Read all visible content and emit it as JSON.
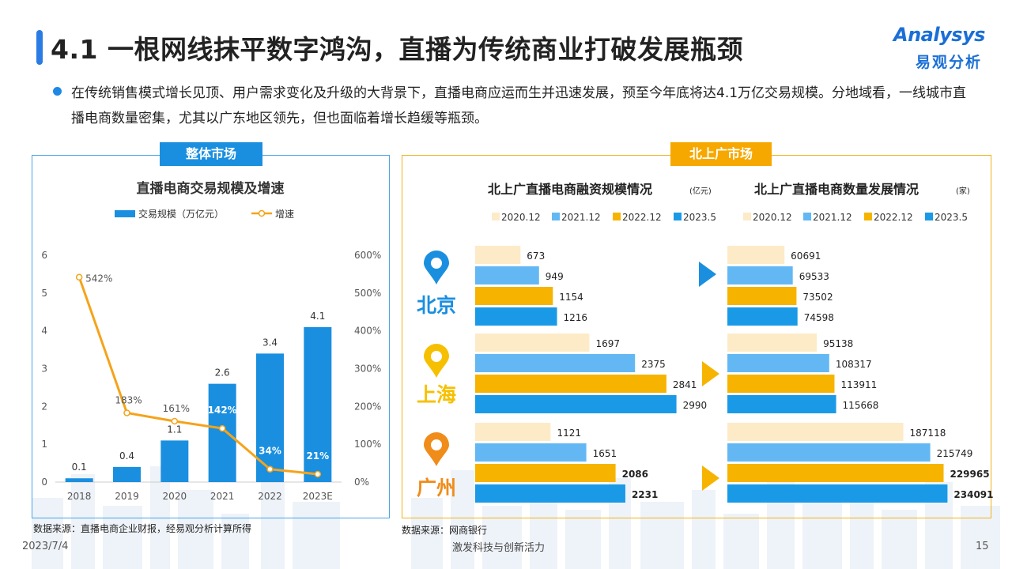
{
  "header": {
    "title": "4.1 一根网线抹平数字鸿沟，直播为传统商业打破发展瓶颈",
    "logo_en": "Analysys",
    "logo_cn": "易观分析"
  },
  "bullet": "在传统销售模式增长见顶、用户需求变化及升级的大背景下，直播电商应运而生并迅速发展，预至今年底将达4.1万亿交易规模。分地域看，一线城市直播电商数量密集，尤其以广东地区领先，但也面临着增长趋缓等瓶颈。",
  "left_panel": {
    "tag": "整体市场",
    "source": "数据来源：直播电商企业财报，经易观分析计算所得"
  },
  "right_panel": {
    "tag": "北上广市场",
    "source": "数据来源：网商银行",
    "cities": [
      "北京",
      "上海",
      "广州"
    ]
  },
  "footer": {
    "date": "2023/7/4",
    "slogan": "激发科技与创新活力",
    "page": "15"
  },
  "colors": {
    "bar_blue": "#1a8fe0",
    "line_orange": "#f5a31a",
    "c2020": "#fdebc8",
    "c2021": "#63b8f4",
    "c2022": "#f6b400",
    "c2023": "#1a9ae6",
    "city_blue": "#1a8fe0",
    "city_yellow": "#f6c000",
    "city_orange": "#f08c1a"
  },
  "chart_data": [
    {
      "type": "bar",
      "title": "直播电商交易规模及增速",
      "categories": [
        "2018",
        "2019",
        "2020",
        "2021",
        "2022",
        "2023E"
      ],
      "series": [
        {
          "name": "交易规模（万亿元）",
          "type": "bar",
          "axis": "left",
          "values": [
            0.1,
            0.4,
            1.1,
            2.6,
            3.4,
            4.1
          ],
          "labels": [
            "0.1",
            "0.4",
            "1.1",
            "2.6",
            "3.4",
            "4.1"
          ]
        },
        {
          "name": "增速",
          "type": "line",
          "axis": "right",
          "values": [
            542,
            183,
            161,
            142,
            34,
            21
          ],
          "labels": [
            "542%",
            "183%",
            "161%",
            "142%",
            "34%",
            "21%"
          ]
        }
      ],
      "ylim": [
        0,
        6
      ],
      "yticks": [
        "0",
        "1",
        "2",
        "3",
        "4",
        "5",
        "6"
      ],
      "y2lim": [
        0,
        600
      ],
      "y2ticks": [
        "0%",
        "100%",
        "200%",
        "300%",
        "400%",
        "500%",
        "600%"
      ],
      "legend_position": "top"
    },
    {
      "type": "bar",
      "orientation": "horizontal",
      "title": "北上广直播电商融资规模情况",
      "unit": "(亿元)",
      "legend": [
        "2020.12",
        "2021.12",
        "2022.12",
        "2023.5"
      ],
      "categories": [
        "北京",
        "上海",
        "广州"
      ],
      "values": [
        [
          673,
          949,
          1154,
          1216
        ],
        [
          1697,
          2375,
          2841,
          2990
        ],
        [
          1121,
          1651,
          2086,
          2231
        ]
      ],
      "labels": [
        [
          "673",
          "949",
          "1154",
          "1216"
        ],
        [
          "1697",
          "2375",
          "2841",
          "2990"
        ],
        [
          "1121",
          "1651",
          "2086",
          "2231"
        ]
      ],
      "xlim": [
        0,
        3500
      ]
    },
    {
      "type": "bar",
      "orientation": "horizontal",
      "title": "北上广直播电商数量发展情况",
      "unit": "(家)",
      "legend": [
        "2020.12",
        "2021.12",
        "2022.12",
        "2023.5"
      ],
      "categories": [
        "北京",
        "上海",
        "广州"
      ],
      "values": [
        [
          60691,
          69533,
          73502,
          74598
        ],
        [
          95138,
          108317,
          113911,
          115668
        ],
        [
          187118,
          215749,
          229965,
          234091
        ]
      ],
      "labels": [
        [
          "60691",
          "69533",
          "73502",
          "74598"
        ],
        [
          "95138",
          "108317",
          "113911",
          "115668"
        ],
        [
          "187118",
          "215749",
          "229965",
          "234091"
        ]
      ],
      "xlim": [
        0,
        280000
      ]
    }
  ]
}
